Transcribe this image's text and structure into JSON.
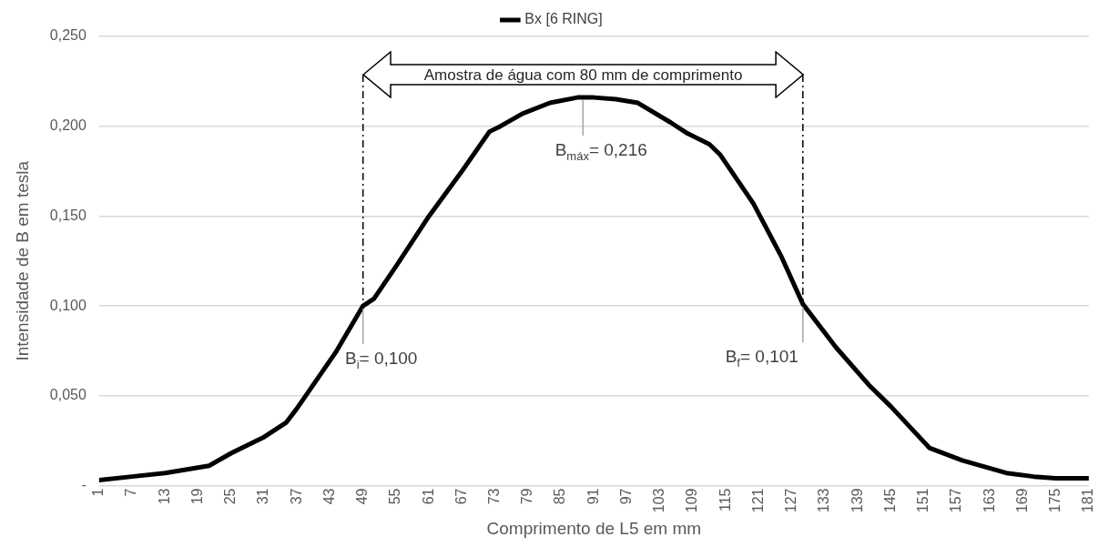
{
  "chart_data": {
    "type": "line",
    "xlabel": "Comprimento de L5 em mm",
    "ylabel": "Intensidade de B em tesla",
    "x": [
      1,
      7,
      13,
      19,
      21,
      25,
      31,
      35,
      37,
      44,
      49,
      51,
      55,
      61,
      67,
      72,
      74,
      78,
      83,
      88,
      91,
      95,
      99,
      105,
      108,
      112,
      114,
      120,
      125,
      129,
      135,
      141,
      145,
      152,
      158,
      166,
      171,
      175,
      181
    ],
    "series": [
      {
        "name": "Bx [6 RING]",
        "color": "#000000",
        "values": [
          0.003,
          0.005,
          0.007,
          0.01,
          0.011,
          0.018,
          0.027,
          0.035,
          0.043,
          0.074,
          0.1,
          0.104,
          0.122,
          0.15,
          0.175,
          0.197,
          0.2,
          0.207,
          0.213,
          0.216,
          0.216,
          0.215,
          0.213,
          0.202,
          0.196,
          0.19,
          0.184,
          0.157,
          0.128,
          0.101,
          0.077,
          0.056,
          0.044,
          0.021,
          0.014,
          0.007,
          0.005,
          0.004,
          0.004
        ]
      }
    ],
    "xlim": [
      1,
      181
    ],
    "xticks": [
      1,
      7,
      13,
      19,
      25,
      31,
      37,
      43,
      49,
      55,
      61,
      67,
      73,
      79,
      85,
      91,
      97,
      103,
      109,
      115,
      121,
      127,
      133,
      139,
      145,
      151,
      157,
      163,
      169,
      175,
      181
    ],
    "ylim": [
      0,
      0.25
    ],
    "yticks": [
      {
        "value": 0,
        "label": "-"
      },
      {
        "value": 0.05,
        "label": "0,050"
      },
      {
        "value": 0.1,
        "label": "0,100"
      },
      {
        "value": 0.15,
        "label": "0,150"
      },
      {
        "value": 0.2,
        "label": "0,200"
      },
      {
        "value": 0.25,
        "label": "0,250"
      }
    ],
    "ref_lines": [
      {
        "axis": "x",
        "value": 49,
        "color": "#000000",
        "line_style": "dashed"
      },
      {
        "axis": "x",
        "value": 129,
        "color": "#000000",
        "line_style": "dashed"
      }
    ],
    "annotations": [
      "Amostra de água com 80 mm de comprimento",
      {
        "text": "B$_{máx}$= 0,216",
        "x": 89,
        "y": 0.216
      },
      {
        "text": "B$_{i}$= 0,100",
        "x": 49,
        "y": 0.1
      },
      {
        "text": "B$_{f}$= 0,101",
        "x": 129,
        "y": 0.101
      }
    ],
    "grid": "y",
    "legend": "top",
    "marker": "none",
    "line_style": "solid"
  }
}
